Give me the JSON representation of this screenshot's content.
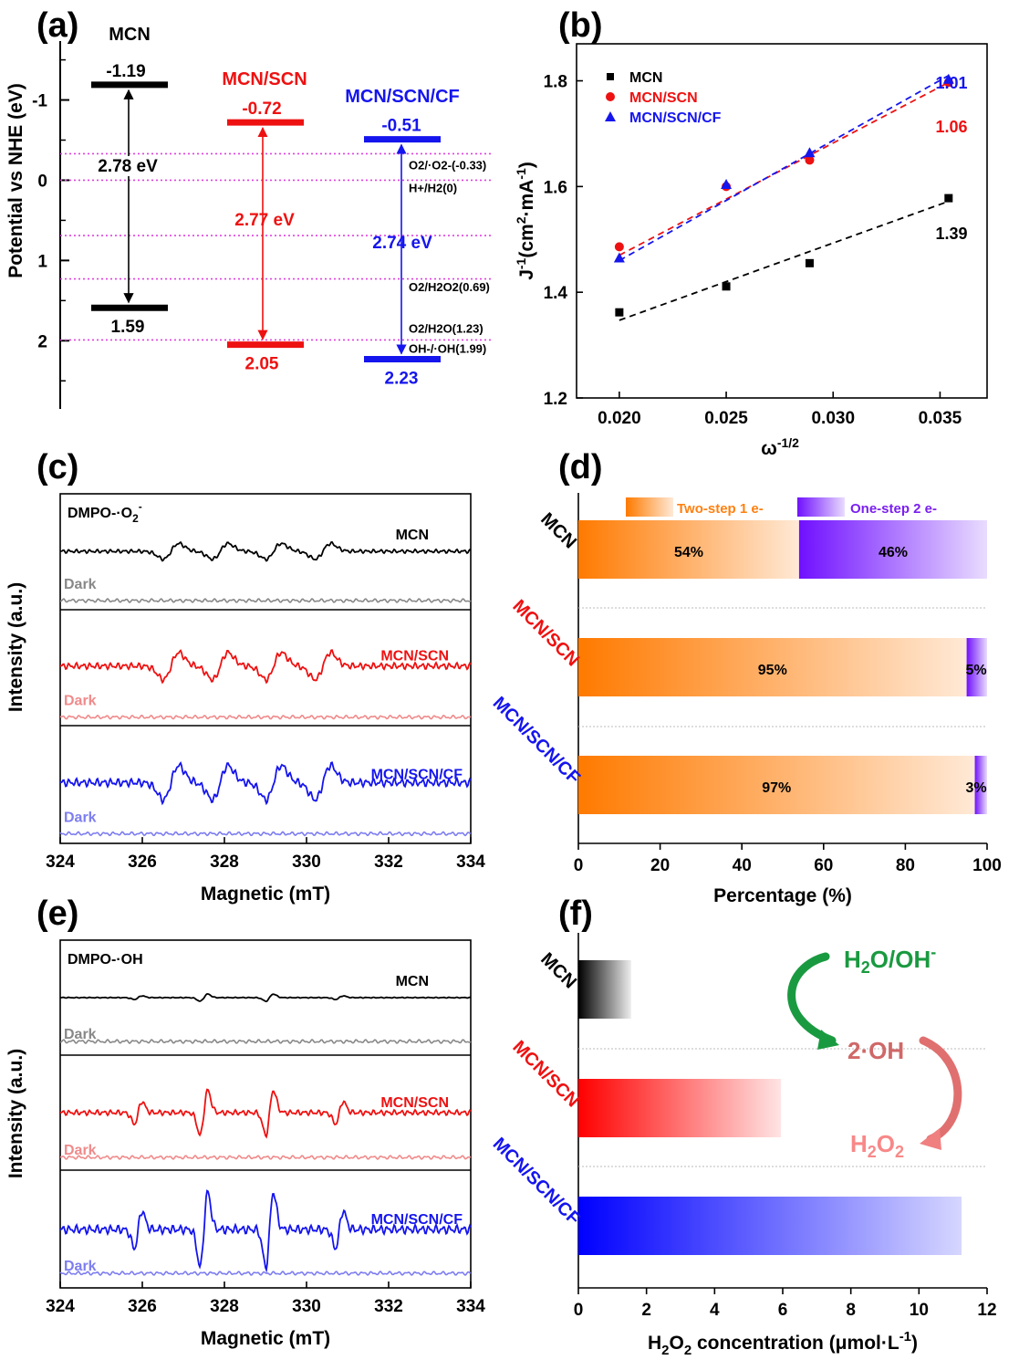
{
  "panels": {
    "a": {
      "letter": "(a)"
    },
    "b": {
      "letter": "(b)"
    },
    "c": {
      "letter": "(c)"
    },
    "d": {
      "letter": "(d)"
    },
    "e": {
      "letter": "(e)"
    },
    "f": {
      "letter": "(f)"
    }
  },
  "colors": {
    "black": "#000000",
    "red": "#ee1111",
    "blue": "#1515ee",
    "magenta": "#e040e0",
    "orange": "#ff8010",
    "purple": "#7a1ff0",
    "green": "#1a9a40"
  },
  "chart_data": [
    {
      "id": "a",
      "type": "diagram",
      "ylabel": "Potential vs NHE (eV)",
      "yticks": [
        "-1",
        "0",
        "1",
        "2"
      ],
      "ylim": [
        -1.7,
        2.85
      ],
      "materials": [
        {
          "name": "MCN",
          "cb": -1.19,
          "vb": 1.59,
          "cb_label": "-1.19",
          "vb_label": "1.59",
          "gap": "2.78 eV",
          "color": "#000000"
        },
        {
          "name": "MCN/SCN",
          "cb": -0.72,
          "vb": 2.05,
          "cb_label": "-0.72",
          "vb_label": "2.05",
          "gap": "2.77 eV",
          "color": "#ee1111"
        },
        {
          "name": "MCN/SCN/CF",
          "cb": -0.51,
          "vb": 2.23,
          "cb_label": "-0.51",
          "vb_label": "2.23",
          "gap": "2.74 eV",
          "color": "#1515ee"
        }
      ],
      "redox": [
        {
          "potential": -0.33,
          "label": "O2/·O2-(-0.33)"
        },
        {
          "potential": 0,
          "label": "H+/H2(0)"
        },
        {
          "potential": 0.69,
          "label": "O2/H2O2(0.69)"
        },
        {
          "potential": 1.23,
          "label": "O2/H2O(1.23)"
        },
        {
          "potential": 1.99,
          "label": "OH-/·OH(1.99)"
        }
      ]
    },
    {
      "id": "b",
      "type": "scatter",
      "xlabel": "ω^-1/2",
      "ylabel": "J^-1(cm2·mA^-1)",
      "xlim": [
        0.018,
        0.0372
      ],
      "ylim": [
        1.2,
        1.87
      ],
      "xticks": [
        "0.020",
        "0.025",
        "0.030",
        "0.035"
      ],
      "yticks": [
        "1.2",
        "1.4",
        "1.6",
        "1.8"
      ],
      "series": [
        {
          "name": "MCN",
          "marker": "square",
          "color": "#000000",
          "x": [
            0.02,
            0.025,
            0.0289,
            0.0354
          ],
          "y": [
            1.362,
            1.411,
            1.455,
            1.578
          ],
          "fit": [
            [
              0.02,
              1.347
            ],
            [
              0.0354,
              1.572
            ]
          ],
          "slope_label": "1.39"
        },
        {
          "name": "MCN/SCN",
          "marker": "circle",
          "color": "#ee1111",
          "x": [
            0.02,
            0.025,
            0.0289,
            0.0354
          ],
          "y": [
            1.486,
            1.6,
            1.65,
            1.797
          ],
          "fit": [
            [
              0.02,
              1.47
            ],
            [
              0.0354,
              1.797
            ]
          ],
          "slope_label": "1.06"
        },
        {
          "name": "MCN/SCN/CF",
          "marker": "triangle",
          "color": "#1515ee",
          "x": [
            0.02,
            0.025,
            0.0289,
            0.0354
          ],
          "y": [
            1.465,
            1.604,
            1.664,
            1.803
          ],
          "fit": [
            [
              0.02,
              1.46
            ],
            [
              0.0354,
              1.81
            ]
          ],
          "slope_label": "1.01"
        }
      ]
    },
    {
      "id": "c",
      "type": "line",
      "title": "DMPO-·O2-",
      "xlabel": "Magnetic (mT)",
      "ylabel": "Intensity (a.u.)",
      "xlim": [
        324,
        334
      ],
      "xticks": [
        "324",
        "326",
        "328",
        "330",
        "332",
        "334"
      ],
      "dark_label": "Dark",
      "peaks": [
        326.7,
        327.9,
        329.2,
        330.4
      ],
      "series": [
        {
          "name": "MCN",
          "color": "#000000",
          "amplitude": 0.55
        },
        {
          "name": "MCN/SCN",
          "color": "#ee1111",
          "amplitude": 0.95
        },
        {
          "name": "MCN/SCN/CF",
          "color": "#1515ee",
          "amplitude": 1.2
        }
      ]
    },
    {
      "id": "d",
      "type": "bar",
      "xlabel": "Percentage (%)",
      "xlim": [
        0,
        100
      ],
      "xticks": [
        "0",
        "20",
        "40",
        "60",
        "80",
        "100"
      ],
      "legend": [
        "Two-step 1 e-",
        "One-step 2 e-"
      ],
      "categories": [
        "MCN",
        "MCN/SCN",
        "MCN/SCN/CF"
      ],
      "two_step": [
        54,
        95,
        97
      ],
      "one_step": [
        46,
        5,
        3
      ],
      "two_step_labels": [
        "54%",
        "95%",
        "97%"
      ],
      "one_step_labels": [
        "46%",
        "5%",
        "3%"
      ]
    },
    {
      "id": "e",
      "type": "line",
      "title": "DMPO-·OH",
      "xlabel": "Magnetic (mT)",
      "ylabel": "Intensity (a.u.)",
      "xlim": [
        324,
        334
      ],
      "xticks": [
        "324",
        "326",
        "328",
        "330",
        "332",
        "334"
      ],
      "dark_label": "Dark",
      "peaks": [
        325.9,
        327.5,
        329.1,
        330.8
      ],
      "ratios": [
        1,
        2,
        2,
        1
      ],
      "series": [
        {
          "name": "MCN",
          "color": "#000000",
          "amplitude": 0.12
        },
        {
          "name": "MCN/SCN",
          "color": "#ee1111",
          "amplitude": 0.75
        },
        {
          "name": "MCN/SCN/CF",
          "color": "#1515ee",
          "amplitude": 1.25
        }
      ]
    },
    {
      "id": "f",
      "type": "bar",
      "xlabel": "H2O2 concentration (μmol·L-1)",
      "xlim": [
        0,
        12
      ],
      "xticks": [
        "0",
        "2",
        "4",
        "6",
        "8",
        "10",
        "12"
      ],
      "categories": [
        "MCN",
        "MCN/SCN",
        "MCN/SCN/CF"
      ],
      "values": [
        1.55,
        5.95,
        11.25
      ],
      "colors": [
        "#000000",
        "#ee1111",
        "#1515ee"
      ],
      "scheme": {
        "top": "H2O/OH-",
        "middle": "2·OH",
        "bottom": "H2O2"
      }
    }
  ]
}
